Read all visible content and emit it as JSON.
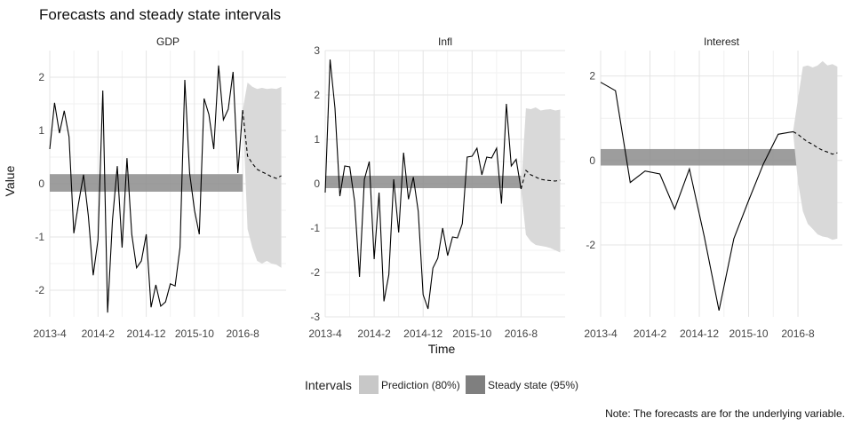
{
  "chart_data": {
    "type": "line",
    "title": "Forecasts and steady state intervals",
    "xlabel": "Time",
    "ylabel": "Value",
    "note": "Note: The forecasts are for the underlying variable.",
    "x_ticks": [
      "2013-4",
      "2014-2",
      "2014-12",
      "2015-10",
      "2016-8"
    ],
    "legend": {
      "title": "Intervals",
      "position": "bottom",
      "entries": [
        {
          "label": "Prediction (80%)",
          "color": "#cccccc"
        },
        {
          "label": "Steady state (95%)",
          "color": "#808080"
        }
      ]
    },
    "colors": {
      "history": "#000000",
      "forecast": "#000000",
      "prediction_band": "#d9d9d9",
      "steady_band": "#8c8c8c"
    },
    "x_range": [
      0,
      49
    ],
    "x_tick_positions": [
      0,
      10,
      20,
      30,
      40
    ],
    "panels": [
      {
        "name": "GDP",
        "ylim": [
          -2.5,
          2.5
        ],
        "y_ticks": [
          -2,
          -1,
          0,
          1,
          2
        ],
        "steady_state": [
          -0.15,
          0.18
        ],
        "history": [
          0.65,
          1.52,
          0.95,
          1.37,
          0.88,
          -0.93,
          -0.35,
          0.17,
          -0.6,
          -1.72,
          -1.05,
          1.75,
          -2.42,
          -0.68,
          0.33,
          -1.2,
          0.48,
          -0.95,
          -1.58,
          -1.45,
          -0.95,
          -2.32,
          -1.9,
          -2.3,
          -2.22,
          -1.88,
          -1.92,
          -1.2,
          1.95,
          0.2,
          -0.5,
          -0.95,
          1.6,
          1.3,
          0.65,
          2.22,
          1.2,
          1.4,
          2.1,
          0.2,
          1.38
        ],
        "forecast_x": [
          40,
          41,
          42,
          43,
          44,
          45,
          46,
          47,
          48
        ],
        "forecast": [
          1.38,
          0.52,
          0.38,
          0.27,
          0.22,
          0.18,
          0.13,
          0.1,
          0.15
        ],
        "pi_upper": [
          1.38,
          1.9,
          1.82,
          1.78,
          1.8,
          1.78,
          1.79,
          1.78,
          1.82
        ],
        "pi_lower": [
          1.38,
          -0.85,
          -1.2,
          -1.45,
          -1.5,
          -1.45,
          -1.5,
          -1.52,
          -1.58
        ]
      },
      {
        "name": "Infl",
        "ylim": [
          -3,
          3
        ],
        "y_ticks": [
          -3,
          -2,
          -1,
          0,
          1,
          2,
          3
        ],
        "steady_state": [
          -0.1,
          0.18
        ],
        "history": [
          -0.2,
          2.8,
          1.7,
          -0.28,
          0.4,
          0.38,
          -0.4,
          -2.1,
          0.1,
          0.5,
          -1.7,
          -0.2,
          -2.65,
          -2.05,
          0.1,
          -1.1,
          0.7,
          -0.35,
          0.15,
          -0.62,
          -2.5,
          -2.82,
          -1.9,
          -1.68,
          -1.0,
          -1.62,
          -1.2,
          -1.22,
          -0.9,
          0.6,
          0.62,
          0.8,
          0.2,
          0.6,
          0.58,
          0.8,
          -0.45,
          1.8,
          0.4,
          0.55,
          -0.12
        ],
        "forecast_x": [
          40,
          41,
          42,
          43,
          44,
          45,
          46,
          47,
          48
        ],
        "forecast": [
          -0.12,
          0.3,
          0.2,
          0.15,
          0.1,
          0.08,
          0.07,
          0.06,
          0.08
        ],
        "pi_upper": [
          -0.12,
          1.7,
          1.68,
          1.72,
          1.65,
          1.67,
          1.68,
          1.65,
          1.67
        ],
        "pi_lower": [
          -0.12,
          -1.15,
          -1.3,
          -1.38,
          -1.4,
          -1.42,
          -1.45,
          -1.5,
          -1.55
        ]
      },
      {
        "name": "Interest",
        "ylim": [
          -3.7,
          2.6
        ],
        "y_ticks": [
          -2,
          0,
          2
        ],
        "steady_state": [
          -0.12,
          0.27
        ],
        "history_x": [
          0,
          3,
          6,
          9,
          12,
          15,
          18,
          21,
          24,
          27,
          30,
          33,
          36,
          39
        ],
        "history": [
          1.85,
          1.65,
          -0.52,
          -0.25,
          -0.32,
          -1.15,
          -0.2,
          -1.8,
          -3.55,
          -1.85,
          -0.95,
          -0.08,
          0.62,
          0.68
        ],
        "forecast_x": [
          39,
          40,
          41,
          42,
          43,
          44,
          45,
          46,
          47,
          48
        ],
        "forecast": [
          0.68,
          0.62,
          0.52,
          0.44,
          0.38,
          0.3,
          0.24,
          0.2,
          0.15,
          0.18
        ],
        "pi_upper": [
          0.68,
          1.45,
          2.22,
          2.25,
          2.2,
          2.25,
          2.35,
          2.25,
          2.28,
          2.22
        ],
        "pi_lower": [
          0.68,
          -0.5,
          -1.2,
          -1.5,
          -1.62,
          -1.75,
          -1.8,
          -1.82,
          -1.88,
          -1.85
        ]
      }
    ]
  }
}
